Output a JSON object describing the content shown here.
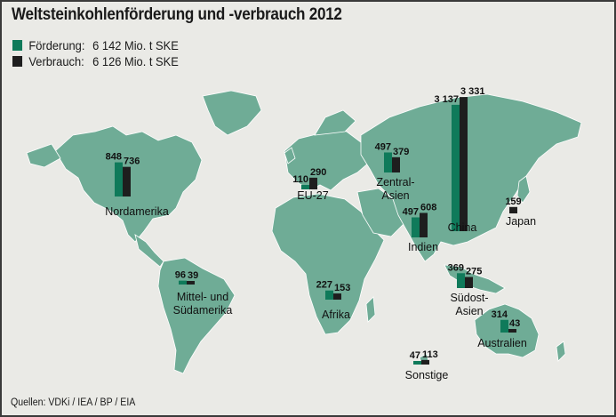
{
  "title": "Weltsteinkohlenförderung und -verbrauch 2012",
  "legend": {
    "foerderung": {
      "label": "Förderung:",
      "value": "6 142 Mio. t SKE"
    },
    "verbrauch": {
      "label": "Verbrauch:",
      "value": "6 126 Mio. t SKE"
    }
  },
  "source": "Quellen: VDKi / IEA / BP / EIA",
  "colors": {
    "foerderung": "#0f7a5a",
    "verbrauch": "#1e1e1e",
    "land": "#6fac96",
    "sea": "#eaeae6"
  },
  "chart_data": {
    "type": "bar",
    "title": "Weltsteinkohlenförderung und -verbrauch 2012",
    "unit": "Mio. t SKE",
    "series": [
      {
        "name": "Förderung",
        "values": [
          848,
          96,
          110,
          227,
          497,
          497,
          3137,
          0,
          369,
          314,
          47
        ]
      },
      {
        "name": "Verbrauch",
        "values": [
          736,
          39,
          290,
          153,
          379,
          608,
          3331,
          159,
          275,
          43,
          113
        ]
      }
    ],
    "regions": [
      {
        "name": "Nordamerika",
        "foerderung": 848,
        "verbrauch": 736,
        "f_label": "848",
        "v_label": "736",
        "label_lines": [
          "Nordamerika"
        ]
      },
      {
        "name": "Mittel- und Südamerika",
        "foerderung": 96,
        "verbrauch": 39,
        "f_label": "96",
        "v_label": "39",
        "label_lines": [
          "Mittel- und",
          "Südamerika"
        ]
      },
      {
        "name": "EU-27",
        "foerderung": 110,
        "verbrauch": 290,
        "f_label": "110",
        "v_label": "290",
        "label_lines": [
          "EU-27"
        ]
      },
      {
        "name": "Afrika",
        "foerderung": 227,
        "verbrauch": 153,
        "f_label": "227",
        "v_label": "153",
        "label_lines": [
          "Afrika"
        ]
      },
      {
        "name": "Zentral-Asien",
        "foerderung": 497,
        "verbrauch": 379,
        "f_label": "497",
        "v_label": "379",
        "label_lines": [
          "Zentral-",
          "Asien"
        ]
      },
      {
        "name": "Indien",
        "foerderung": 497,
        "verbrauch": 608,
        "f_label": "497",
        "v_label": "608",
        "label_lines": [
          "Indien"
        ]
      },
      {
        "name": "China",
        "foerderung": 3137,
        "verbrauch": 3331,
        "f_label": "3 137",
        "v_label": "3 331",
        "label_lines": [
          "China"
        ]
      },
      {
        "name": "Japan",
        "foerderung": null,
        "verbrauch": 159,
        "f_label": "",
        "v_label": "159",
        "label_lines": [
          "Japan"
        ]
      },
      {
        "name": "Südost-Asien",
        "foerderung": 369,
        "verbrauch": 275,
        "f_label": "369",
        "v_label": "275",
        "label_lines": [
          "Südost-",
          "Asien"
        ]
      },
      {
        "name": "Australien",
        "foerderung": 314,
        "verbrauch": 43,
        "f_label": "314",
        "v_label": "43",
        "label_lines": [
          "Australien"
        ]
      },
      {
        "name": "Sonstige",
        "foerderung": 47,
        "verbrauch": 113,
        "f_label": "47",
        "v_label": "113",
        "label_lines": [
          "Sonstige"
        ]
      }
    ]
  }
}
